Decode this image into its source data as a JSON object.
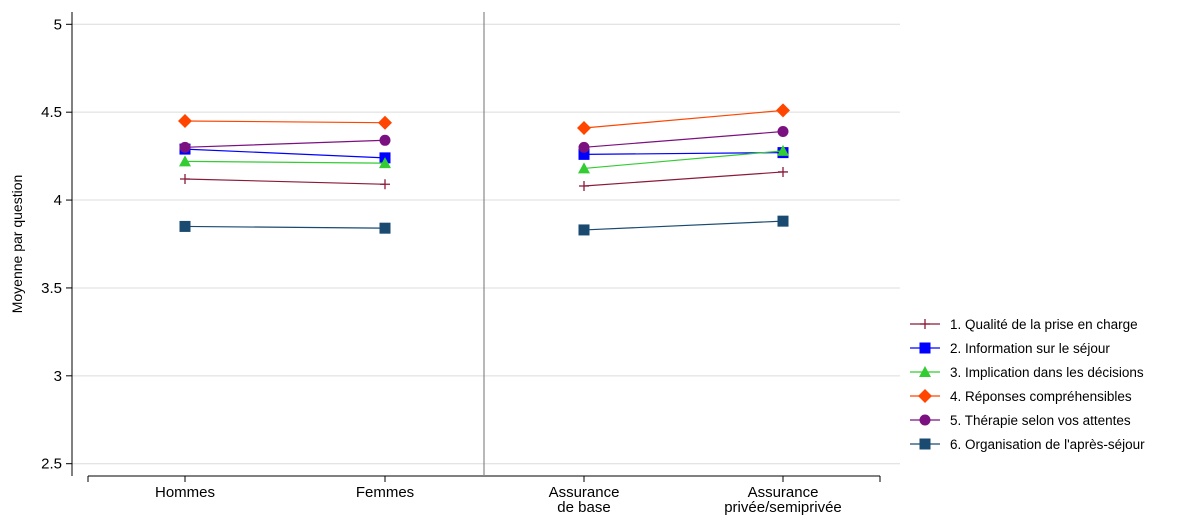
{
  "chart_data": {
    "type": "line",
    "y_label": "Moyenne par question",
    "categories": [
      "Hommes",
      "Femmes",
      null,
      "Assurance\nde base",
      "Assurance\nprivée/semiprivée"
    ],
    "ylim": [
      2.43,
      5.07
    ],
    "yticks": [
      5,
      4.5,
      4,
      3.5,
      3,
      2.5
    ],
    "grid": true,
    "legend": "right",
    "series": [
      {
        "name": "1. Qualité de la prise en charge",
        "color": "#8b1a3a",
        "marker": "plus",
        "values": [
          4.12,
          4.09,
          null,
          4.08,
          4.16
        ]
      },
      {
        "name": "2. Information sur le séjour",
        "color": "#0000ff",
        "marker": "square",
        "values": [
          4.29,
          4.24,
          null,
          4.26,
          4.27
        ]
      },
      {
        "name": "3. Implication dans les décisions",
        "color": "#33cc33",
        "marker": "triangle",
        "values": [
          4.22,
          4.21,
          null,
          4.18,
          4.28
        ]
      },
      {
        "name": "4. Réponses compréhensibles",
        "color": "#ff4500",
        "marker": "diamond",
        "values": [
          4.45,
          4.44,
          null,
          4.41,
          4.51
        ]
      },
      {
        "name": "5. Thérapie selon vos attentes",
        "color": "#7b1080",
        "marker": "circle",
        "values": [
          4.3,
          4.34,
          null,
          4.3,
          4.39
        ]
      },
      {
        "name": "6. Organisation de l'après-séjour",
        "color": "#1a4a70",
        "marker": "square",
        "values": [
          3.85,
          3.84,
          null,
          3.83,
          3.88
        ]
      }
    ]
  }
}
